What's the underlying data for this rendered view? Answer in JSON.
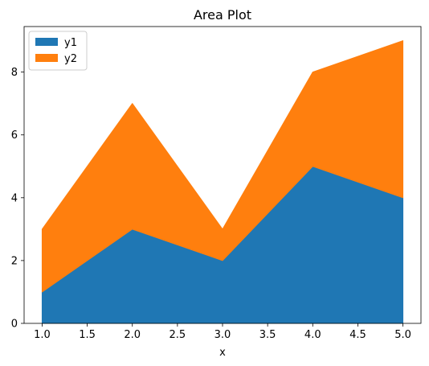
{
  "chart_data": {
    "type": "area",
    "stacked": true,
    "title": "Area Plot",
    "xlabel": "x",
    "ylabel": "",
    "x": [
      1.0,
      2.0,
      3.0,
      4.0,
      5.0
    ],
    "series": [
      {
        "name": "y1",
        "values": [
          1,
          3,
          2,
          5,
          4
        ],
        "color": "#1f77b4"
      },
      {
        "name": "y2",
        "values": [
          2,
          4,
          1,
          3,
          5
        ],
        "color": "#ff7f0e"
      }
    ],
    "xlim": [
      0.8,
      5.2
    ],
    "ylim": [
      0,
      9.45
    ],
    "xticks": [
      1.0,
      1.5,
      2.0,
      2.5,
      3.0,
      3.5,
      4.0,
      4.5,
      5.0
    ],
    "xtick_labels": [
      "1.0",
      "1.5",
      "2.0",
      "2.5",
      "3.0",
      "3.5",
      "4.0",
      "4.5",
      "5.0"
    ],
    "yticks": [
      0,
      2,
      4,
      6,
      8
    ],
    "ytick_labels": [
      "0",
      "2",
      "4",
      "6",
      "8"
    ],
    "grid": false,
    "legend_position": "top-left"
  }
}
